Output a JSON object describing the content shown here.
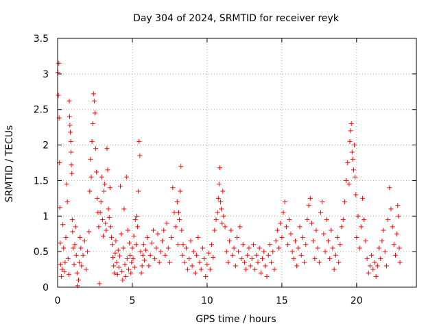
{
  "chart_data": {
    "type": "scatter",
    "title": "Day 304 of 2024, SRMTID for receiver reyk",
    "xlabel": "GPS time / hours",
    "ylabel": "SRMTID / TECUs",
    "xlim": [
      0,
      24
    ],
    "ylim": [
      0,
      3.5
    ],
    "x_ticks": [
      0,
      5,
      10,
      15,
      20
    ],
    "x_tick_labels": [
      "0",
      "5",
      "10",
      "15",
      "20"
    ],
    "y_ticks": [
      0,
      0.5,
      1,
      1.5,
      2,
      2.5,
      3,
      3.5
    ],
    "y_tick_labels": [
      "0",
      "0.5",
      "1",
      "1.5",
      "2",
      "2.5",
      "3",
      "3.5"
    ],
    "grid": true,
    "marker": "+",
    "color": "#ff0000",
    "series": [
      {
        "name": "SRMTID",
        "points": [
          [
            0.02,
            3.02
          ],
          [
            0.05,
            2.7
          ],
          [
            0.08,
            3.15
          ],
          [
            0.1,
            2.38
          ],
          [
            0.12,
            1.75
          ],
          [
            0.15,
            1.12
          ],
          [
            0.18,
            0.62
          ],
          [
            0.2,
            0.32
          ],
          [
            0.25,
            0.15
          ],
          [
            0.3,
            0.25
          ],
          [
            0.35,
            0.88
          ],
          [
            0.4,
            0.55
          ],
          [
            0.45,
            0.22
          ],
          [
            0.5,
            0.35
          ],
          [
            0.55,
            0.7
          ],
          [
            0.6,
            1.45
          ],
          [
            0.65,
            1.2
          ],
          [
            0.7,
            0.4
          ],
          [
            0.75,
            0.18
          ],
          [
            0.78,
            2.62
          ],
          [
            0.8,
            2.4
          ],
          [
            0.82,
            2.28
          ],
          [
            0.85,
            2.18
          ],
          [
            0.88,
            2.05
          ],
          [
            0.9,
            1.9
          ],
          [
            0.92,
            1.72
          ],
          [
            0.95,
            1.6
          ],
          [
            0.98,
            0.95
          ],
          [
            1.0,
            0.78
          ],
          [
            1.05,
            0.55
          ],
          [
            1.1,
            0.32
          ],
          [
            1.15,
            0.6
          ],
          [
            1.2,
            0.85
          ],
          [
            1.25,
            0.45
          ],
          [
            1.3,
            0.2
          ],
          [
            1.35,
            0.02
          ],
          [
            1.4,
            0.1
          ],
          [
            1.45,
            0.35
          ],
          [
            1.5,
            0.7
          ],
          [
            1.55,
            0.55
          ],
          [
            1.6,
            0.3
          ],
          [
            1.7,
            0.45
          ],
          [
            1.8,
            0.65
          ],
          [
            1.9,
            0.25
          ],
          [
            2.0,
            0.5
          ],
          [
            2.1,
            0.78
          ],
          [
            2.15,
            1.35
          ],
          [
            2.2,
            1.8
          ],
          [
            2.25,
            1.55
          ],
          [
            2.3,
            2.05
          ],
          [
            2.35,
            2.3
          ],
          [
            2.4,
            2.72
          ],
          [
            2.45,
            2.62
          ],
          [
            2.5,
            2.45
          ],
          [
            2.55,
            1.95
          ],
          [
            2.6,
            1.62
          ],
          [
            2.65,
            1.25
          ],
          [
            2.7,
            1.05
          ],
          [
            2.75,
            0.85
          ],
          [
            2.8,
            0.05
          ],
          [
            2.85,
            1.05
          ],
          [
            2.9,
            1.2
          ],
          [
            2.95,
            1.55
          ],
          [
            3.0,
            0.95
          ],
          [
            3.05,
            0.72
          ],
          [
            3.1,
            1.35
          ],
          [
            3.15,
            1.45
          ],
          [
            3.2,
            0.9
          ],
          [
            3.25,
            0.8
          ],
          [
            3.3,
            1.95
          ],
          [
            3.35,
            1.65
          ],
          [
            3.4,
            1.1
          ],
          [
            3.45,
            0.98
          ],
          [
            3.5,
            1.4
          ],
          [
            3.55,
            0.85
          ],
          [
            3.6,
            0.7
          ],
          [
            3.65,
            0.6
          ],
          [
            3.7,
            0.42
          ],
          [
            3.75,
            0.3
          ],
          [
            3.8,
            0.2
          ],
          [
            3.85,
            0.48
          ],
          [
            3.9,
            0.65
          ],
          [
            3.95,
            0.35
          ],
          [
            4.0,
            0.18
          ],
          [
            4.05,
            0.52
          ],
          [
            4.1,
            0.28
          ],
          [
            4.15,
            0.44
          ],
          [
            4.2,
            1.42
          ],
          [
            4.25,
            0.75
          ],
          [
            4.3,
            0.22
          ],
          [
            4.35,
            0.1
          ],
          [
            4.4,
            0.55
          ],
          [
            4.45,
            1.1
          ],
          [
            4.5,
            0.32
          ],
          [
            4.55,
            0.15
          ],
          [
            4.6,
            1.55
          ],
          [
            4.65,
            0.4
          ],
          [
            4.7,
            0.8
          ],
          [
            4.75,
            0.25
          ],
          [
            4.8,
            0.62
          ],
          [
            4.85,
            0.45
          ],
          [
            4.9,
            0.2
          ],
          [
            4.95,
            0.35
          ],
          [
            5.0,
            0.55
          ],
          [
            5.05,
            0.4
          ],
          [
            5.1,
            0.72
          ],
          [
            5.15,
            0.28
          ],
          [
            5.2,
            0.95
          ],
          [
            5.25,
            0.6
          ],
          [
            5.3,
            1.0
          ],
          [
            5.35,
            0.85
          ],
          [
            5.4,
            1.35
          ],
          [
            5.45,
            2.05
          ],
          [
            5.5,
            1.85
          ],
          [
            5.55,
            0.5
          ],
          [
            5.6,
            0.2
          ],
          [
            5.65,
            0.3
          ],
          [
            5.7,
            0.45
          ],
          [
            5.75,
            0.6
          ],
          [
            5.8,
            0.38
          ],
          [
            5.9,
            0.52
          ],
          [
            6.0,
            0.7
          ],
          [
            6.1,
            0.3
          ],
          [
            6.2,
            0.45
          ],
          [
            6.3,
            0.62
          ],
          [
            6.4,
            0.8
          ],
          [
            6.5,
            0.4
          ],
          [
            6.6,
            0.55
          ],
          [
            6.7,
            0.75
          ],
          [
            6.8,
            0.35
          ],
          [
            6.9,
            0.5
          ],
          [
            7.0,
            0.65
          ],
          [
            7.1,
            0.8
          ],
          [
            7.2,
            0.45
          ],
          [
            7.3,
            0.9
          ],
          [
            7.4,
            0.55
          ],
          [
            7.5,
            0.35
          ],
          [
            7.6,
            0.7
          ],
          [
            7.7,
            1.4
          ],
          [
            7.8,
            1.05
          ],
          [
            7.9,
            0.85
          ],
          [
            8.0,
            1.2
          ],
          [
            8.05,
            0.6
          ],
          [
            8.1,
            1.05
          ],
          [
            8.15,
            0.95
          ],
          [
            8.2,
            1.35
          ],
          [
            8.25,
            1.7
          ],
          [
            8.3,
            0.8
          ],
          [
            8.35,
            0.45
          ],
          [
            8.4,
            0.6
          ],
          [
            8.5,
            0.35
          ],
          [
            8.6,
            0.55
          ],
          [
            8.7,
            0.25
          ],
          [
            8.8,
            0.4
          ],
          [
            8.9,
            0.65
          ],
          [
            9.0,
            0.3
          ],
          [
            9.1,
            0.5
          ],
          [
            9.2,
            0.2
          ],
          [
            9.3,
            0.45
          ],
          [
            9.4,
            0.7
          ],
          [
            9.5,
            0.35
          ],
          [
            9.6,
            0.25
          ],
          [
            9.7,
            0.55
          ],
          [
            9.8,
            0.4
          ],
          [
            9.9,
            0.15
          ],
          [
            10.0,
            0.32
          ],
          [
            10.1,
            0.48
          ],
          [
            10.2,
            0.25
          ],
          [
            10.3,
            0.6
          ],
          [
            10.4,
            0.42
          ],
          [
            10.5,
            0.8
          ],
          [
            10.6,
            0.95
          ],
          [
            10.7,
            1.05
          ],
          [
            10.75,
            1.25
          ],
          [
            10.8,
            1.45
          ],
          [
            10.85,
            1.68
          ],
          [
            10.9,
            1.2
          ],
          [
            10.95,
            1.1
          ],
          [
            11.0,
            0.9
          ],
          [
            11.05,
            1.35
          ],
          [
            11.1,
            1.0
          ],
          [
            11.2,
            0.85
          ],
          [
            11.3,
            0.5
          ],
          [
            11.4,
            0.35
          ],
          [
            11.5,
            0.65
          ],
          [
            11.6,
            0.8
          ],
          [
            11.7,
            0.45
          ],
          [
            11.8,
            0.55
          ],
          [
            11.9,
            0.3
          ],
          [
            12.0,
            0.7
          ],
          [
            12.1,
            0.5
          ],
          [
            12.2,
            0.85
          ],
          [
            12.3,
            0.4
          ],
          [
            12.4,
            0.6
          ],
          [
            12.5,
            0.35
          ],
          [
            12.6,
            0.25
          ],
          [
            12.7,
            0.45
          ],
          [
            12.8,
            0.55
          ],
          [
            12.9,
            0.3
          ],
          [
            13.0,
            0.4
          ],
          [
            13.1,
            0.6
          ],
          [
            13.2,
            0.25
          ],
          [
            13.3,
            0.45
          ],
          [
            13.4,
            0.35
          ],
          [
            13.5,
            0.55
          ],
          [
            13.6,
            0.2
          ],
          [
            13.7,
            0.4
          ],
          [
            13.8,
            0.5
          ],
          [
            13.9,
            0.3
          ],
          [
            14.0,
            0.15
          ],
          [
            14.1,
            0.45
          ],
          [
            14.2,
            0.6
          ],
          [
            14.3,
            0.35
          ],
          [
            14.4,
            0.5
          ],
          [
            14.5,
            0.25
          ],
          [
            14.6,
            0.65
          ],
          [
            14.7,
            0.8
          ],
          [
            14.8,
            0.55
          ],
          [
            14.9,
            0.9
          ],
          [
            15.0,
            0.7
          ],
          [
            15.1,
            1.05
          ],
          [
            15.2,
            1.2
          ],
          [
            15.3,
            0.85
          ],
          [
            15.4,
            0.6
          ],
          [
            15.5,
            0.95
          ],
          [
            15.6,
            0.75
          ],
          [
            15.7,
            0.5
          ],
          [
            15.8,
            0.4
          ],
          [
            15.9,
            0.65
          ],
          [
            16.0,
            0.3
          ],
          [
            16.1,
            0.55
          ],
          [
            16.2,
            0.85
          ],
          [
            16.3,
            0.45
          ],
          [
            16.4,
            0.7
          ],
          [
            16.5,
            0.35
          ],
          [
            16.6,
            0.6
          ],
          [
            16.7,
            0.95
          ],
          [
            16.8,
            1.15
          ],
          [
            16.9,
            1.25
          ],
          [
            17.0,
            0.9
          ],
          [
            17.1,
            0.65
          ],
          [
            17.2,
            0.4
          ],
          [
            17.3,
            0.8
          ],
          [
            17.4,
            0.55
          ],
          [
            17.5,
            0.35
          ],
          [
            17.6,
            1.05
          ],
          [
            17.7,
            1.2
          ],
          [
            17.8,
            0.75
          ],
          [
            17.9,
            0.5
          ],
          [
            18.0,
            0.95
          ],
          [
            18.1,
            0.65
          ],
          [
            18.2,
            0.4
          ],
          [
            18.3,
            0.8
          ],
          [
            18.4,
            0.55
          ],
          [
            18.5,
            0.25
          ],
          [
            18.6,
            0.45
          ],
          [
            18.7,
            0.7
          ],
          [
            18.8,
            0.35
          ],
          [
            18.9,
            0.6
          ],
          [
            19.0,
            0.85
          ],
          [
            19.1,
            0.95
          ],
          [
            19.2,
            1.2
          ],
          [
            19.3,
            1.5
          ],
          [
            19.4,
            1.75
          ],
          [
            19.5,
            1.45
          ],
          [
            19.55,
            2.05
          ],
          [
            19.6,
            2.2
          ],
          [
            19.65,
            2.3
          ],
          [
            19.7,
            1.9
          ],
          [
            19.75,
            1.8
          ],
          [
            19.8,
            1.65
          ],
          [
            19.85,
            2.0
          ],
          [
            19.9,
            1.55
          ],
          [
            19.95,
            1.3
          ],
          [
            20.0,
            0.7
          ],
          [
            20.1,
            1.0
          ],
          [
            20.2,
            0.55
          ],
          [
            20.3,
            0.85
          ],
          [
            20.4,
            1.25
          ],
          [
            20.5,
            0.95
          ],
          [
            20.6,
            0.65
          ],
          [
            20.7,
            0.4
          ],
          [
            20.8,
            0.2
          ],
          [
            20.9,
            0.3
          ],
          [
            21.0,
            0.45
          ],
          [
            21.1,
            0.25
          ],
          [
            21.2,
            0.35
          ],
          [
            21.3,
            0.15
          ],
          [
            21.4,
            0.3
          ],
          [
            21.5,
            0.55
          ],
          [
            21.6,
            0.4
          ],
          [
            21.7,
            0.65
          ],
          [
            21.8,
            0.8
          ],
          [
            21.9,
            0.5
          ],
          [
            22.0,
            0.3
          ],
          [
            22.1,
            0.95
          ],
          [
            22.2,
            1.4
          ],
          [
            22.3,
            1.1
          ],
          [
            22.4,
            0.85
          ],
          [
            22.5,
            0.6
          ],
          [
            22.6,
            0.45
          ],
          [
            22.7,
            0.75
          ],
          [
            22.75,
            1.15
          ],
          [
            22.8,
            1.0
          ],
          [
            22.85,
            0.55
          ],
          [
            22.9,
            0.35
          ]
        ]
      }
    ]
  }
}
